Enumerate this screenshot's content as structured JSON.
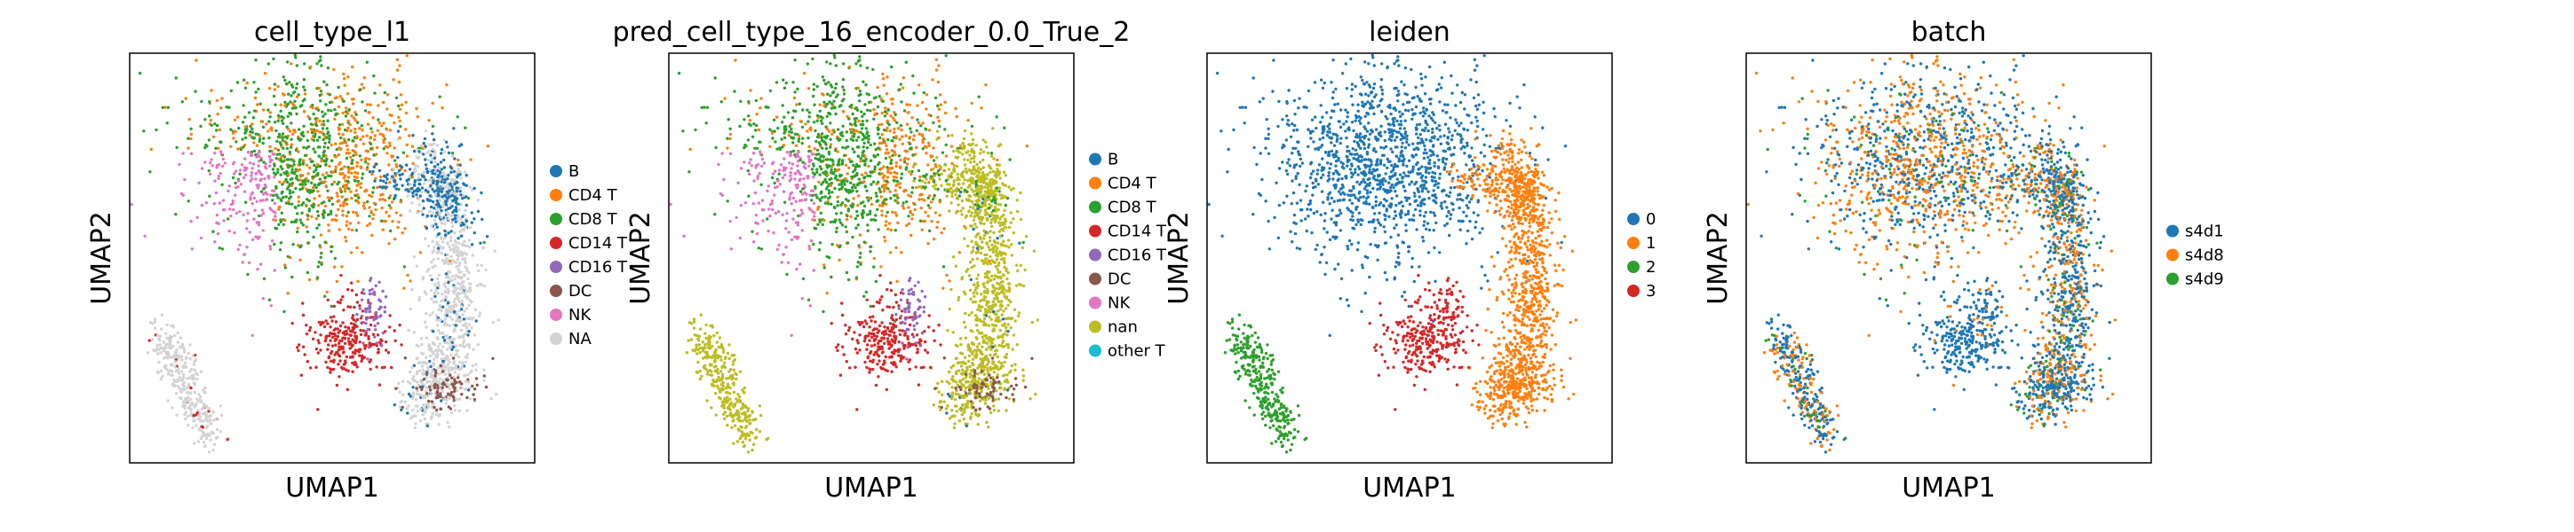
{
  "chart_data": [
    {
      "type": "scatter",
      "title": "cell_type_l1",
      "xlabel": "UMAP1",
      "ylabel": "UMAP2",
      "grid": false,
      "ticks": false,
      "legend": "right",
      "categories": [
        {
          "name": "B",
          "color": "#1f77b4"
        },
        {
          "name": "CD4 T",
          "color": "#ff7f0e"
        },
        {
          "name": "CD8 T",
          "color": "#2ca02c"
        },
        {
          "name": "CD14 T",
          "color": "#d62728"
        },
        {
          "name": "CD16 T",
          "color": "#9467bd"
        },
        {
          "name": "DC",
          "color": "#8c564b"
        },
        {
          "name": "NK",
          "color": "#e377c2"
        },
        {
          "name": "NA",
          "color": "#d3d3d3"
        }
      ]
    },
    {
      "type": "scatter",
      "title": "pred_cell_type_16_encoder_0.0_True_2",
      "xlabel": "UMAP1",
      "ylabel": "UMAP2",
      "grid": false,
      "ticks": false,
      "legend": "right",
      "categories": [
        {
          "name": "B",
          "color": "#1f77b4"
        },
        {
          "name": "CD4 T",
          "color": "#ff7f0e"
        },
        {
          "name": "CD8 T",
          "color": "#2ca02c"
        },
        {
          "name": "CD14 T",
          "color": "#d62728"
        },
        {
          "name": "CD16 T",
          "color": "#9467bd"
        },
        {
          "name": "DC",
          "color": "#8c564b"
        },
        {
          "name": "NK",
          "color": "#e377c2"
        },
        {
          "name": "nan",
          "color": "#bcbd22"
        },
        {
          "name": "other T",
          "color": "#17becf"
        }
      ]
    },
    {
      "type": "scatter",
      "title": "leiden",
      "xlabel": "UMAP1",
      "ylabel": "UMAP2",
      "grid": false,
      "ticks": false,
      "legend": "right",
      "categories": [
        {
          "name": "0",
          "color": "#1f77b4"
        },
        {
          "name": "1",
          "color": "#ff7f0e"
        },
        {
          "name": "2",
          "color": "#2ca02c"
        },
        {
          "name": "3",
          "color": "#d62728"
        }
      ]
    },
    {
      "type": "scatter",
      "title": "batch",
      "xlabel": "UMAP1",
      "ylabel": "UMAP2",
      "grid": false,
      "ticks": false,
      "legend": "right",
      "categories": [
        {
          "name": "s4d1",
          "color": "#1f77b4"
        },
        {
          "name": "s4d8",
          "color": "#ff7f0e"
        },
        {
          "name": "s4d9",
          "color": "#2ca02c"
        }
      ]
    }
  ]
}
